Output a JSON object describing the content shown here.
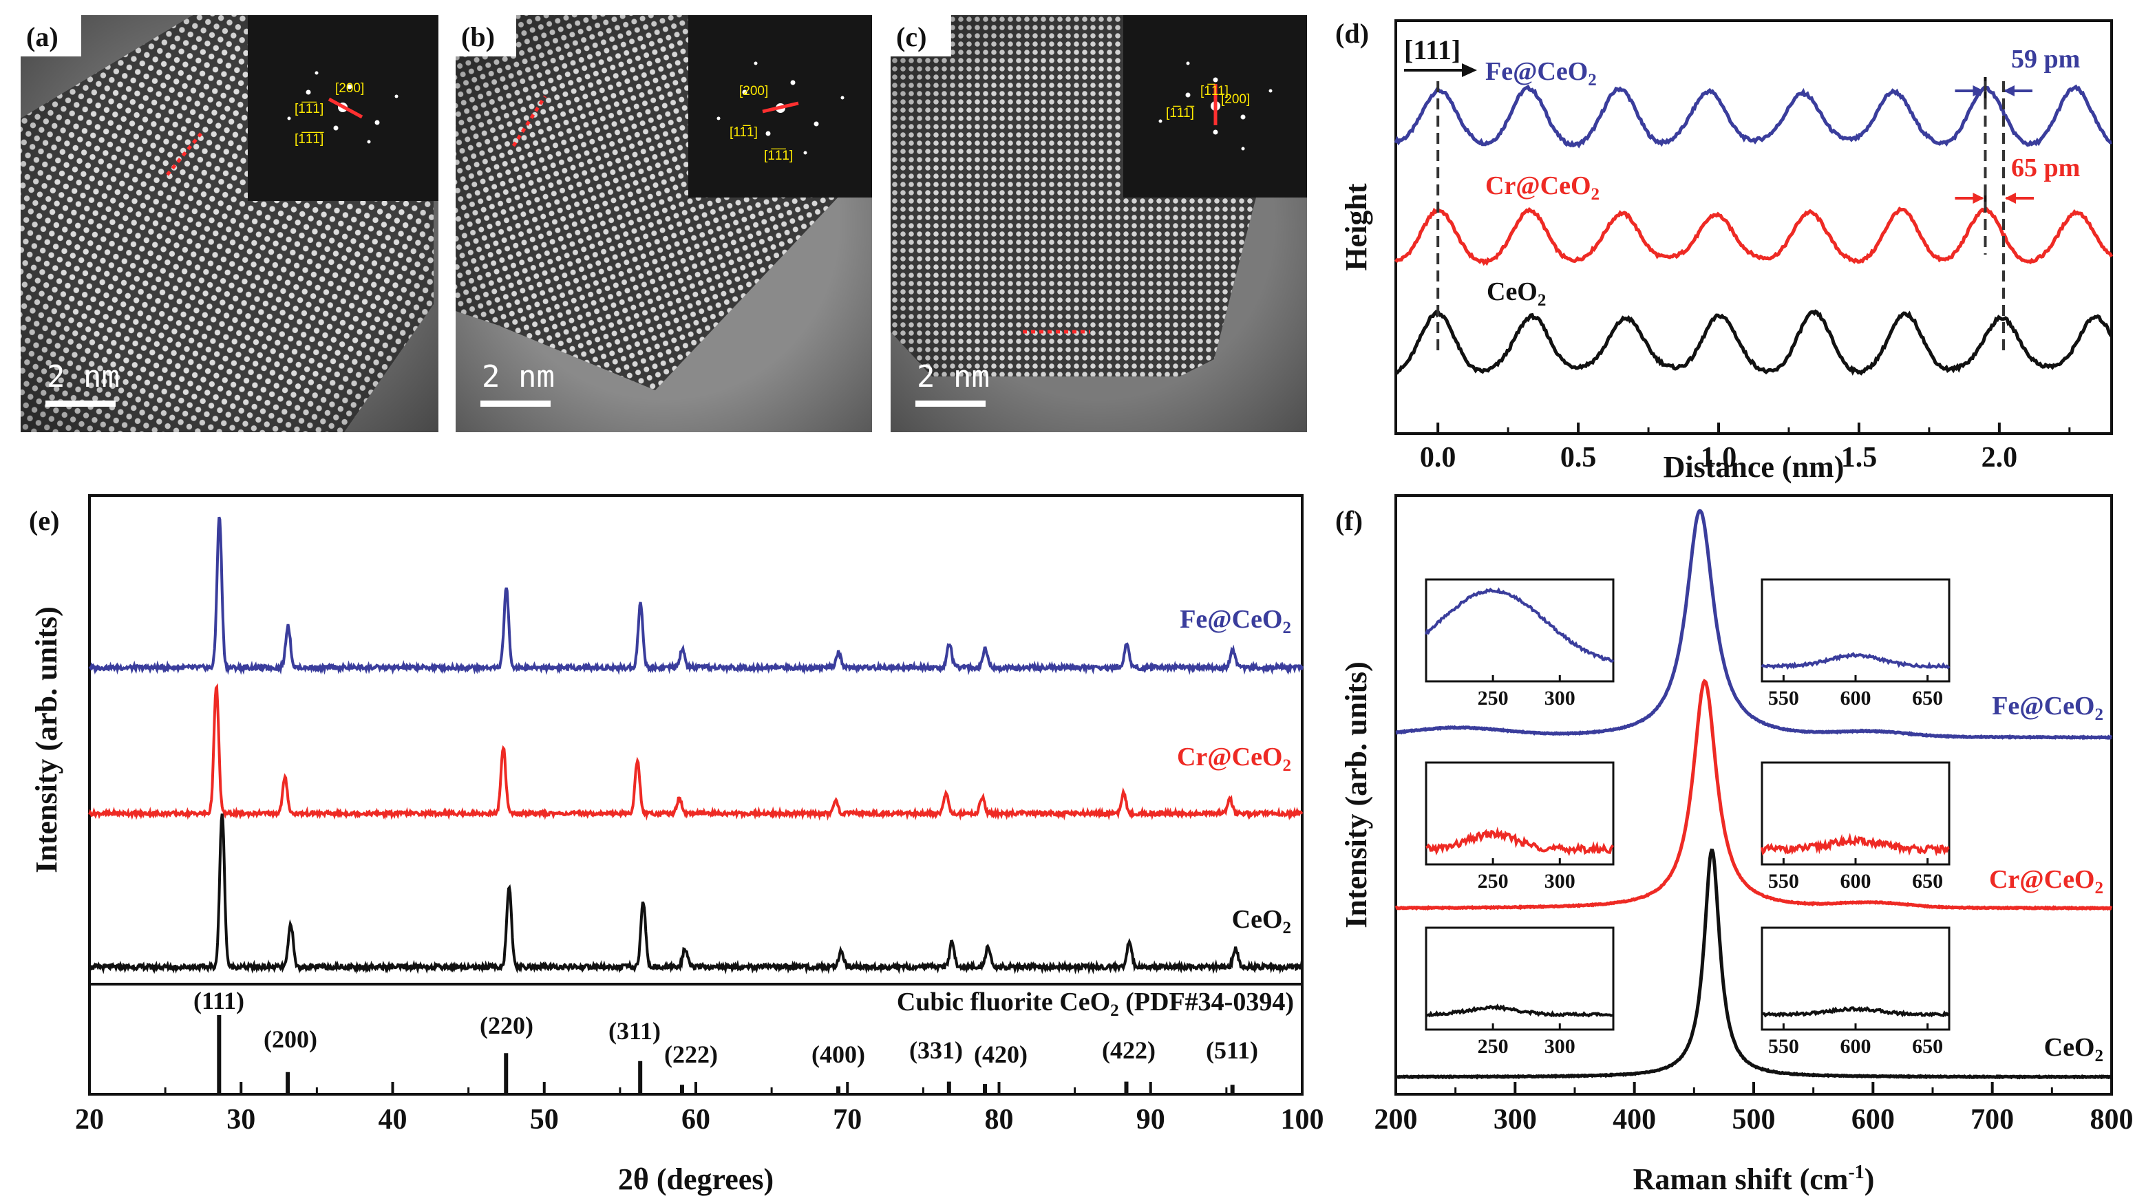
{
  "panels": {
    "a": {
      "label": "(a)",
      "scale_bar": "2 nm",
      "fft_labels": [
        "[200]",
        "[1̅1̅1]",
        "[1̅1̅1̅]"
      ]
    },
    "b": {
      "label": "(b)",
      "scale_bar": "2 nm",
      "fft_labels": [
        "[200]",
        "[11̅1]",
        "[1̅1̅1]"
      ]
    },
    "c": {
      "label": "(c)",
      "scale_bar": "2 nm",
      "fft_labels": [
        "[1̅11]",
        "[200]",
        "[1̅11̅]"
      ]
    },
    "d": {
      "label": "(d)"
    },
    "e": {
      "label": "(e)"
    },
    "f": {
      "label": "(f)"
    }
  },
  "colors": {
    "fe": "#3a3d9c",
    "cr": "#ee2a24",
    "ceo2": "#111111"
  },
  "chart_data": [
    {
      "id": "d",
      "type": "line",
      "xlabel": "Distance (nm)",
      "ylabel": "Height",
      "xlim": [
        -0.15,
        2.4
      ],
      "xticks": [
        "0.0",
        "0.5",
        "1.0",
        "1.5",
        "2.0"
      ],
      "zone_axis": "[111]",
      "series": [
        {
          "name": "Fe@CeO",
          "sub": "2",
          "color": "#3a3d9c",
          "peaks": [
            0.0,
            0.32,
            0.65,
            0.97,
            1.3,
            1.62,
            1.95,
            2.27
          ],
          "marker": {
            "text": "59 pm",
            "x1": 1.95,
            "x2": 2.01
          }
        },
        {
          "name": "Cr@CeO",
          "sub": "2",
          "color": "#ee2a24",
          "peaks": [
            0.0,
            0.33,
            0.66,
            0.99,
            1.32,
            1.65,
            1.95,
            2.28
          ],
          "marker": {
            "text": "65 pm",
            "x1": 1.95,
            "x2": 2.015
          }
        },
        {
          "name": "CeO",
          "sub": "2",
          "color": "#111111",
          "peaks": [
            0.0,
            0.34,
            0.67,
            1.0,
            1.34,
            1.67,
            2.01,
            2.34
          ]
        }
      ]
    },
    {
      "id": "e",
      "type": "line",
      "xlabel": "2θ (degrees)",
      "ylabel": "Intensity (arb. units)",
      "xlim": [
        20,
        100
      ],
      "xticks": [
        "20",
        "30",
        "40",
        "50",
        "60",
        "70",
        "80",
        "90",
        "100"
      ],
      "reference": {
        "label": "Cubic fluorite CeO",
        "label_sub": "2",
        "label_tail": " (PDF#34-0394)",
        "peaks": [
          {
            "x": 28.55,
            "hkl": "(111)",
            "h": 1.0
          },
          {
            "x": 33.08,
            "hkl": "(200)",
            "h": 0.28
          },
          {
            "x": 47.48,
            "hkl": "(220)",
            "h": 0.52
          },
          {
            "x": 56.33,
            "hkl": "(311)",
            "h": 0.42
          },
          {
            "x": 59.09,
            "hkl": "(222)",
            "h": 0.12
          },
          {
            "x": 69.4,
            "hkl": "(400)",
            "h": 0.1
          },
          {
            "x": 76.7,
            "hkl": "(331)",
            "h": 0.16
          },
          {
            "x": 79.07,
            "hkl": "(420)",
            "h": 0.13
          },
          {
            "x": 88.4,
            "hkl": "(422)",
            "h": 0.16
          },
          {
            "x": 95.4,
            "hkl": "(511)",
            "h": 0.12
          }
        ]
      },
      "series": [
        {
          "name": "Fe@CeO",
          "sub": "2",
          "color": "#3a3d9c"
        },
        {
          "name": "Cr@CeO",
          "sub": "2",
          "color": "#ee2a24"
        },
        {
          "name": "CeO",
          "sub": "2",
          "color": "#111111"
        }
      ]
    },
    {
      "id": "f",
      "type": "line",
      "xlabel": "Raman shift (cm",
      "xlabel_sup": "-1",
      "xlabel_tail": ")",
      "ylabel": "Intensity (arb. units)",
      "xlim": [
        200,
        800
      ],
      "xticks": [
        "200",
        "300",
        "400",
        "500",
        "600",
        "700",
        "800"
      ],
      "series": [
        {
          "name": "Fe@CeO",
          "sub": "2",
          "color": "#3a3d9c",
          "peak": 455
        },
        {
          "name": "Cr@CeO",
          "sub": "2",
          "color": "#ee2a24",
          "peak": 459
        },
        {
          "name": "CeO",
          "sub": "2",
          "color": "#111111",
          "peak": 465
        }
      ],
      "inset_left_ticks": [
        "250",
        "300"
      ],
      "inset_right_ticks": [
        "550",
        "600",
        "650"
      ]
    }
  ]
}
